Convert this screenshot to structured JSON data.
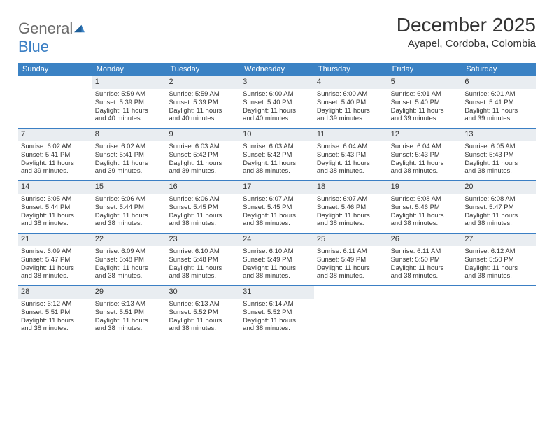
{
  "brand": {
    "part1": "General",
    "part2": "Blue"
  },
  "title": "December 2025",
  "location": "Ayapel, Cordoba, Colombia",
  "dow": [
    "Sunday",
    "Monday",
    "Tuesday",
    "Wednesday",
    "Thursday",
    "Friday",
    "Saturday"
  ],
  "colors": {
    "header_bg": "#3b82c4",
    "header_text": "#ffffff",
    "week_divider": "#3b7fc4",
    "daynum_bg": "#e9edf1",
    "text": "#333333",
    "logo_gray": "#6b6b6b",
    "logo_blue": "#3b7fc4",
    "background": "#ffffff"
  },
  "typography": {
    "title_fontsize": 28,
    "location_fontsize": 15,
    "dow_fontsize": 11,
    "daynum_fontsize": 11,
    "cell_fontsize": 9.5,
    "font_family": "Arial"
  },
  "layout": {
    "columns": 7,
    "rows": 5
  },
  "weeks": [
    [
      {
        "n": "",
        "empty": true
      },
      {
        "n": "1",
        "sr": "Sunrise: 5:59 AM",
        "ss": "Sunset: 5:39 PM",
        "dl1": "Daylight: 11 hours",
        "dl2": "and 40 minutes."
      },
      {
        "n": "2",
        "sr": "Sunrise: 5:59 AM",
        "ss": "Sunset: 5:39 PM",
        "dl1": "Daylight: 11 hours",
        "dl2": "and 40 minutes."
      },
      {
        "n": "3",
        "sr": "Sunrise: 6:00 AM",
        "ss": "Sunset: 5:40 PM",
        "dl1": "Daylight: 11 hours",
        "dl2": "and 40 minutes."
      },
      {
        "n": "4",
        "sr": "Sunrise: 6:00 AM",
        "ss": "Sunset: 5:40 PM",
        "dl1": "Daylight: 11 hours",
        "dl2": "and 39 minutes."
      },
      {
        "n": "5",
        "sr": "Sunrise: 6:01 AM",
        "ss": "Sunset: 5:40 PM",
        "dl1": "Daylight: 11 hours",
        "dl2": "and 39 minutes."
      },
      {
        "n": "6",
        "sr": "Sunrise: 6:01 AM",
        "ss": "Sunset: 5:41 PM",
        "dl1": "Daylight: 11 hours",
        "dl2": "and 39 minutes."
      }
    ],
    [
      {
        "n": "7",
        "sr": "Sunrise: 6:02 AM",
        "ss": "Sunset: 5:41 PM",
        "dl1": "Daylight: 11 hours",
        "dl2": "and 39 minutes."
      },
      {
        "n": "8",
        "sr": "Sunrise: 6:02 AM",
        "ss": "Sunset: 5:41 PM",
        "dl1": "Daylight: 11 hours",
        "dl2": "and 39 minutes."
      },
      {
        "n": "9",
        "sr": "Sunrise: 6:03 AM",
        "ss": "Sunset: 5:42 PM",
        "dl1": "Daylight: 11 hours",
        "dl2": "and 39 minutes."
      },
      {
        "n": "10",
        "sr": "Sunrise: 6:03 AM",
        "ss": "Sunset: 5:42 PM",
        "dl1": "Daylight: 11 hours",
        "dl2": "and 38 minutes."
      },
      {
        "n": "11",
        "sr": "Sunrise: 6:04 AM",
        "ss": "Sunset: 5:43 PM",
        "dl1": "Daylight: 11 hours",
        "dl2": "and 38 minutes."
      },
      {
        "n": "12",
        "sr": "Sunrise: 6:04 AM",
        "ss": "Sunset: 5:43 PM",
        "dl1": "Daylight: 11 hours",
        "dl2": "and 38 minutes."
      },
      {
        "n": "13",
        "sr": "Sunrise: 6:05 AM",
        "ss": "Sunset: 5:43 PM",
        "dl1": "Daylight: 11 hours",
        "dl2": "and 38 minutes."
      }
    ],
    [
      {
        "n": "14",
        "sr": "Sunrise: 6:05 AM",
        "ss": "Sunset: 5:44 PM",
        "dl1": "Daylight: 11 hours",
        "dl2": "and 38 minutes."
      },
      {
        "n": "15",
        "sr": "Sunrise: 6:06 AM",
        "ss": "Sunset: 5:44 PM",
        "dl1": "Daylight: 11 hours",
        "dl2": "and 38 minutes."
      },
      {
        "n": "16",
        "sr": "Sunrise: 6:06 AM",
        "ss": "Sunset: 5:45 PM",
        "dl1": "Daylight: 11 hours",
        "dl2": "and 38 minutes."
      },
      {
        "n": "17",
        "sr": "Sunrise: 6:07 AM",
        "ss": "Sunset: 5:45 PM",
        "dl1": "Daylight: 11 hours",
        "dl2": "and 38 minutes."
      },
      {
        "n": "18",
        "sr": "Sunrise: 6:07 AM",
        "ss": "Sunset: 5:46 PM",
        "dl1": "Daylight: 11 hours",
        "dl2": "and 38 minutes."
      },
      {
        "n": "19",
        "sr": "Sunrise: 6:08 AM",
        "ss": "Sunset: 5:46 PM",
        "dl1": "Daylight: 11 hours",
        "dl2": "and 38 minutes."
      },
      {
        "n": "20",
        "sr": "Sunrise: 6:08 AM",
        "ss": "Sunset: 5:47 PM",
        "dl1": "Daylight: 11 hours",
        "dl2": "and 38 minutes."
      }
    ],
    [
      {
        "n": "21",
        "sr": "Sunrise: 6:09 AM",
        "ss": "Sunset: 5:47 PM",
        "dl1": "Daylight: 11 hours",
        "dl2": "and 38 minutes."
      },
      {
        "n": "22",
        "sr": "Sunrise: 6:09 AM",
        "ss": "Sunset: 5:48 PM",
        "dl1": "Daylight: 11 hours",
        "dl2": "and 38 minutes."
      },
      {
        "n": "23",
        "sr": "Sunrise: 6:10 AM",
        "ss": "Sunset: 5:48 PM",
        "dl1": "Daylight: 11 hours",
        "dl2": "and 38 minutes."
      },
      {
        "n": "24",
        "sr": "Sunrise: 6:10 AM",
        "ss": "Sunset: 5:49 PM",
        "dl1": "Daylight: 11 hours",
        "dl2": "and 38 minutes."
      },
      {
        "n": "25",
        "sr": "Sunrise: 6:11 AM",
        "ss": "Sunset: 5:49 PM",
        "dl1": "Daylight: 11 hours",
        "dl2": "and 38 minutes."
      },
      {
        "n": "26",
        "sr": "Sunrise: 6:11 AM",
        "ss": "Sunset: 5:50 PM",
        "dl1": "Daylight: 11 hours",
        "dl2": "and 38 minutes."
      },
      {
        "n": "27",
        "sr": "Sunrise: 6:12 AM",
        "ss": "Sunset: 5:50 PM",
        "dl1": "Daylight: 11 hours",
        "dl2": "and 38 minutes."
      }
    ],
    [
      {
        "n": "28",
        "sr": "Sunrise: 6:12 AM",
        "ss": "Sunset: 5:51 PM",
        "dl1": "Daylight: 11 hours",
        "dl2": "and 38 minutes."
      },
      {
        "n": "29",
        "sr": "Sunrise: 6:13 AM",
        "ss": "Sunset: 5:51 PM",
        "dl1": "Daylight: 11 hours",
        "dl2": "and 38 minutes."
      },
      {
        "n": "30",
        "sr": "Sunrise: 6:13 AM",
        "ss": "Sunset: 5:52 PM",
        "dl1": "Daylight: 11 hours",
        "dl2": "and 38 minutes."
      },
      {
        "n": "31",
        "sr": "Sunrise: 6:14 AM",
        "ss": "Sunset: 5:52 PM",
        "dl1": "Daylight: 11 hours",
        "dl2": "and 38 minutes."
      },
      {
        "n": "",
        "empty": true
      },
      {
        "n": "",
        "empty": true
      },
      {
        "n": "",
        "empty": true
      }
    ]
  ]
}
